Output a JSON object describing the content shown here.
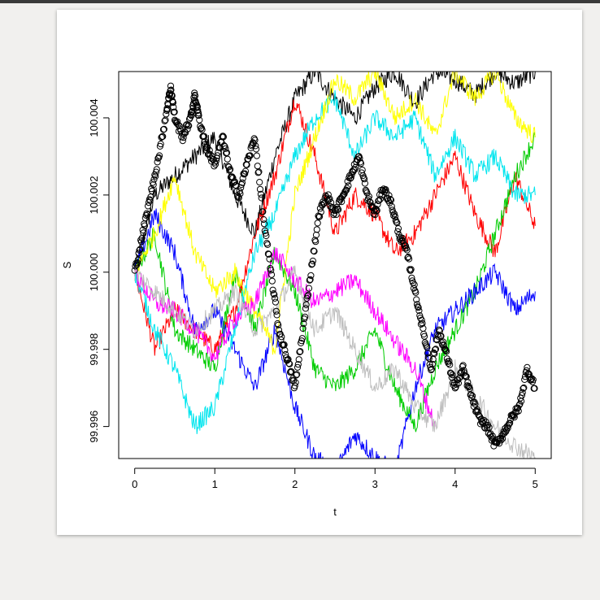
{
  "chart_data": {
    "type": "line",
    "title": "",
    "xlabel": "t",
    "ylabel": "S",
    "xlim": [
      -0.2,
      5.2
    ],
    "ylim": [
      99.99517,
      100.0052
    ],
    "xticks": [
      0,
      1,
      2,
      3,
      4,
      5
    ],
    "xtick_labels": [
      "0",
      "1",
      "2",
      "3",
      "4",
      "5"
    ],
    "yticks": [
      99.996,
      99.998,
      100.0,
      100.002,
      100.004
    ],
    "ytick_labels": [
      "99.996",
      "99.998",
      "100.000",
      "100.002",
      "100.004"
    ],
    "grid": false,
    "series": [
      {
        "color": "#000000",
        "style": "line",
        "x": [
          0,
          0.25,
          0.5,
          0.75,
          1,
          1.25,
          1.5,
          1.75,
          2,
          2.25,
          2.5,
          2.75,
          3,
          3.25,
          3.5,
          3.75,
          4,
          4.25,
          4.5,
          4.75,
          5
        ],
        "y": [
          100.0,
          100.002,
          100.0025,
          100.003,
          100.0035,
          100.002,
          100.001,
          100.003,
          100.0045,
          100.0052,
          100.0045,
          100.004,
          100.0048,
          100.0052,
          100.0044,
          100.0052,
          100.005,
          100.0046,
          100.0052,
          100.0049,
          100.0052
        ]
      },
      {
        "color": "#ff0000",
        "style": "line",
        "x": [
          0,
          0.25,
          0.5,
          0.75,
          1,
          1.25,
          1.5,
          1.75,
          2,
          2.25,
          2.5,
          2.75,
          3,
          3.25,
          3.5,
          3.75,
          4,
          4.25,
          4.5,
          4.75,
          5
        ],
        "y": [
          100.0,
          99.998,
          99.999,
          99.9985,
          99.998,
          99.999,
          100.001,
          100.0025,
          100.0045,
          100.003,
          100.001,
          100.002,
          100.0015,
          100.0005,
          100.001,
          100.002,
          100.003,
          100.0015,
          100.0005,
          100.0025,
          100.0012
        ]
      },
      {
        "color": "#00cc00",
        "style": "line",
        "x": [
          0,
          0.25,
          0.5,
          0.75,
          1,
          1.25,
          1.5,
          1.75,
          2,
          2.25,
          2.5,
          2.75,
          3,
          3.25,
          3.5,
          3.75,
          4,
          4.25,
          4.5,
          4.75,
          5
        ],
        "y": [
          100.0,
          100.001,
          99.9985,
          99.998,
          99.9975,
          100.0,
          99.9985,
          100.0005,
          99.9995,
          99.9975,
          99.997,
          99.9975,
          99.9985,
          99.997,
          99.996,
          99.9975,
          99.9985,
          99.9995,
          100.001,
          100.0025,
          100.0035
        ]
      },
      {
        "color": "#0000ff",
        "style": "line",
        "x": [
          0,
          0.25,
          0.5,
          0.75,
          1,
          1.25,
          1.5,
          1.75,
          2,
          2.25,
          2.5,
          2.75,
          3,
          3.25,
          3.5,
          3.75,
          4,
          4.25,
          4.5,
          4.75,
          5
        ],
        "y": [
          100.0,
          100.0015,
          100.0005,
          99.9985,
          99.999,
          99.998,
          99.997,
          99.9985,
          99.9965,
          99.9952,
          99.9948,
          99.9958,
          99.9952,
          99.9948,
          99.997,
          99.9985,
          99.999,
          99.9995,
          100.0,
          99.999,
          99.9995
        ]
      },
      {
        "color": "#00e5ee",
        "style": "line",
        "x": [
          0,
          0.25,
          0.5,
          0.75,
          1,
          1.25,
          1.5,
          1.75,
          2,
          2.25,
          2.5,
          2.75,
          3,
          3.25,
          3.5,
          3.75,
          4,
          4.25,
          4.5,
          4.75,
          5
        ],
        "y": [
          100.0,
          99.9985,
          99.9975,
          99.996,
          99.9965,
          99.9985,
          100.0005,
          100.0015,
          100.003,
          100.004,
          100.0045,
          100.003,
          100.004,
          100.0035,
          100.004,
          100.0025,
          100.0035,
          100.0025,
          100.003,
          100.002,
          100.002
        ]
      },
      {
        "color": "#ffff00",
        "style": "line",
        "x": [
          0,
          0.25,
          0.5,
          0.75,
          1,
          1.25,
          1.5,
          1.75,
          2,
          2.25,
          2.5,
          2.75,
          3,
          3.25,
          3.5,
          3.75,
          4,
          4.25,
          4.5,
          4.75,
          5
        ],
        "y": [
          100.0,
          100.001,
          100.0025,
          100.0005,
          99.9995,
          100.0,
          99.999,
          99.998,
          100.002,
          100.0035,
          100.005,
          100.0045,
          100.0052,
          100.004,
          100.0045,
          100.0035,
          100.0052,
          100.0045,
          100.0052,
          100.004,
          100.0035
        ]
      },
      {
        "color": "#ff00ff",
        "style": "line",
        "x": [
          0,
          0.25,
          0.5,
          0.75,
          1,
          1.25,
          1.5,
          1.75,
          2,
          2.25,
          2.5,
          2.75,
          3,
          3.25,
          3.5,
          3.75
        ],
        "y": [
          100.0,
          99.9992,
          99.999,
          99.9985,
          99.9978,
          99.9988,
          99.9992,
          100.0005,
          99.9998,
          99.9992,
          99.9995,
          99.9998,
          99.999,
          99.9982,
          99.9975,
          99.996
        ]
      },
      {
        "color": "#bebebe",
        "style": "line",
        "x": [
          0,
          0.25,
          0.5,
          0.75,
          1,
          1.25,
          1.5,
          1.75,
          2,
          2.25,
          2.5,
          2.75,
          3,
          3.25,
          3.5,
          3.75,
          4,
          4.25,
          4.5,
          4.75,
          5
        ],
        "y": [
          100.0,
          99.9995,
          99.999,
          99.9985,
          99.999,
          99.9995,
          99.9985,
          99.999,
          100.0,
          99.9985,
          99.999,
          99.998,
          99.997,
          99.9975,
          99.9965,
          99.996,
          99.9975,
          99.9968,
          99.996,
          99.9955,
          99.9952
        ]
      },
      {
        "color": "#000000",
        "style": "points",
        "x": [
          0,
          0.1,
          0.2,
          0.3,
          0.4,
          0.45,
          0.5,
          0.6,
          0.7,
          0.75,
          0.8,
          0.9,
          1.0,
          1.1,
          1.2,
          1.3,
          1.4,
          1.5,
          1.6,
          1.7,
          1.8,
          1.9,
          2.0,
          2.1,
          2.2,
          2.3,
          2.4,
          2.5,
          2.6,
          2.7,
          2.8,
          2.9,
          3.0,
          3.1,
          3.2,
          3.3,
          3.4,
          3.5,
          3.6,
          3.7,
          3.8,
          3.9,
          4.0,
          4.1,
          4.2,
          4.3,
          4.4,
          4.5,
          4.6,
          4.7,
          4.8,
          4.9,
          5.0
        ],
        "y": [
          100.0,
          100.001,
          100.002,
          100.003,
          100.0042,
          100.0048,
          100.004,
          100.0035,
          100.004,
          100.0046,
          100.004,
          100.0032,
          100.0028,
          100.0035,
          100.0025,
          100.002,
          100.0028,
          100.0035,
          100.0015,
          100.0,
          99.9985,
          99.9978,
          99.997,
          99.9985,
          100.0,
          100.0015,
          100.002,
          100.0015,
          100.002,
          100.0025,
          100.003,
          100.002,
          100.0015,
          100.0022,
          100.0018,
          100.001,
          100.0005,
          99.9995,
          99.9985,
          99.9975,
          99.9985,
          99.9978,
          99.997,
          99.9975,
          99.9968,
          99.9962,
          99.996,
          99.9955,
          99.9958,
          99.9962,
          99.9965,
          99.9975,
          99.997
        ]
      }
    ]
  }
}
